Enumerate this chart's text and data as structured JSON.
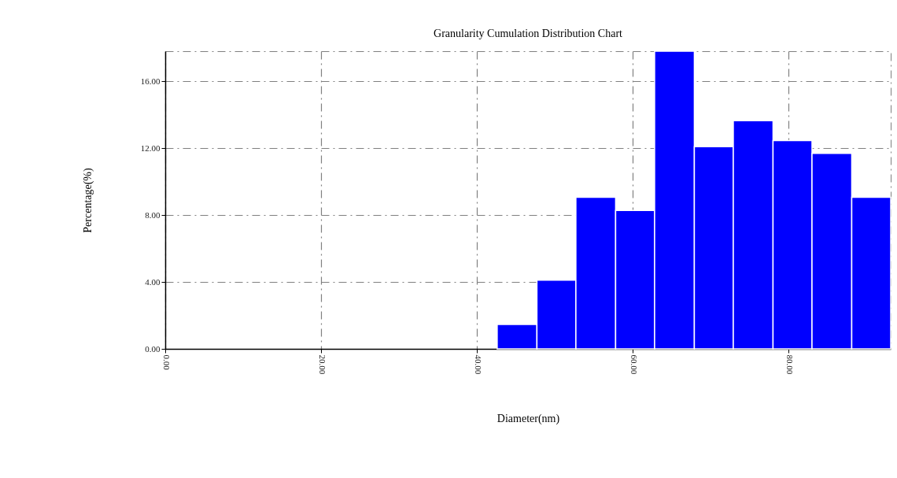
{
  "chart_data": {
    "type": "histogram",
    "title": "Granularity Cumulation Distribution  Chart",
    "xlabel": "Diameter(nm)",
    "ylabel": "Percentage(%)",
    "bins": [
      42.6,
      47.7,
      52.7,
      57.8,
      62.8,
      67.9,
      72.9,
      78.0,
      83.0,
      88.1,
      93.1
    ],
    "values": [
      1.46,
      4.11,
      9.06,
      8.28,
      17.8,
      12.09,
      13.64,
      12.45,
      11.69,
      9.06
    ],
    "color": "#0000ff",
    "xlim": [
      0,
      93.1
    ],
    "ylim": [
      0,
      17.8
    ],
    "xticks": [
      {
        "value": 0,
        "label": "0.00"
      },
      {
        "value": 20,
        "label": "20.00"
      },
      {
        "value": 40,
        "label": "40.00"
      },
      {
        "value": 60,
        "label": "60.00"
      },
      {
        "value": 80,
        "label": "80.00"
      }
    ],
    "yticks": [
      {
        "value": 0,
        "label": "0.00"
      },
      {
        "value": 4,
        "label": "4.00"
      },
      {
        "value": 8,
        "label": "8.00"
      },
      {
        "value": 12,
        "label": "12.00"
      },
      {
        "value": 16,
        "label": "16.00"
      }
    ],
    "grid": true
  }
}
